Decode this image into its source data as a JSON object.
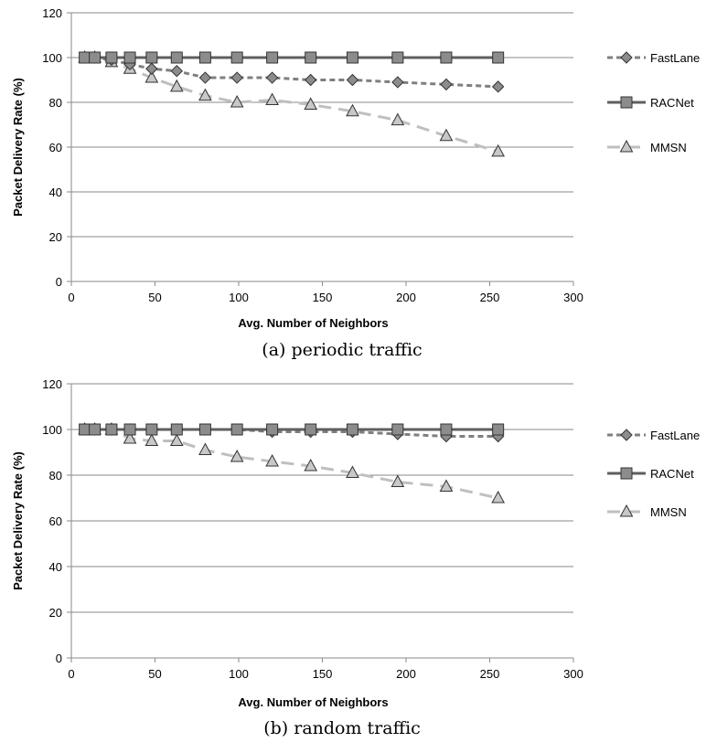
{
  "chart_data": [
    {
      "type": "line",
      "caption": "(a) periodic traffic",
      "xlabel": "Avg. Number of Neighbors",
      "ylabel": "Packet Delivery Rate (%)",
      "xlim": [
        0,
        300
      ],
      "ylim": [
        0,
        120
      ],
      "xticks": [
        0,
        50,
        100,
        150,
        200,
        250,
        300
      ],
      "yticks": [
        0,
        20,
        40,
        60,
        80,
        100,
        120
      ],
      "grid": "horizontal",
      "legend_position": "right",
      "series": [
        {
          "name": "FastLane",
          "marker": "diamond",
          "dash": "dashed",
          "color": "#7f7f7f",
          "x": [
            8,
            14,
            24,
            35,
            48,
            63,
            80,
            99,
            120,
            143,
            168,
            195,
            224,
            255
          ],
          "y": [
            100,
            100,
            99,
            97,
            95,
            94,
            91,
            91,
            91,
            90,
            90,
            89,
            88,
            87
          ]
        },
        {
          "name": "RACNet",
          "marker": "square",
          "dash": "solid",
          "color": "#5f5f5f",
          "x": [
            8,
            14,
            24,
            35,
            48,
            63,
            80,
            99,
            120,
            143,
            168,
            195,
            224,
            255
          ],
          "y": [
            100,
            100,
            100,
            100,
            100,
            100,
            100,
            100,
            100,
            100,
            100,
            100,
            100,
            100
          ]
        },
        {
          "name": "MMSN",
          "marker": "triangle",
          "dash": "longdash",
          "color": "#bfbfbf",
          "x": [
            8,
            14,
            24,
            35,
            48,
            63,
            80,
            99,
            120,
            143,
            168,
            195,
            224,
            255
          ],
          "y": [
            100,
            100,
            98,
            95,
            91,
            87,
            83,
            80,
            81,
            79,
            76,
            72,
            65,
            58
          ]
        }
      ]
    },
    {
      "type": "line",
      "caption": "(b) random traffic",
      "xlabel": "Avg. Number of Neighbors",
      "ylabel": "Packet Delivery Rate (%)",
      "xlim": [
        0,
        300
      ],
      "ylim": [
        0,
        120
      ],
      "xticks": [
        0,
        50,
        100,
        150,
        200,
        250,
        300
      ],
      "yticks": [
        0,
        20,
        40,
        60,
        80,
        100,
        120
      ],
      "grid": "horizontal",
      "legend_position": "right",
      "series": [
        {
          "name": "FastLane",
          "marker": "diamond",
          "dash": "dashed",
          "color": "#7f7f7f",
          "x": [
            8,
            14,
            24,
            35,
            48,
            63,
            80,
            99,
            120,
            143,
            168,
            195,
            224,
            255
          ],
          "y": [
            100,
            100,
            100,
            100,
            100,
            100,
            100,
            100,
            99,
            99,
            99,
            98,
            97,
            97
          ]
        },
        {
          "name": "RACNet",
          "marker": "square",
          "dash": "solid",
          "color": "#5f5f5f",
          "x": [
            8,
            14,
            24,
            35,
            48,
            63,
            80,
            99,
            120,
            143,
            168,
            195,
            224,
            255
          ],
          "y": [
            100,
            100,
            100,
            100,
            100,
            100,
            100,
            100,
            100,
            100,
            100,
            100,
            100,
            100
          ]
        },
        {
          "name": "MMSN",
          "marker": "triangle",
          "dash": "longdash",
          "color": "#bfbfbf",
          "x": [
            8,
            14,
            24,
            35,
            48,
            63,
            80,
            99,
            120,
            143,
            168,
            195,
            224,
            255
          ],
          "y": [
            100,
            100,
            100,
            96,
            95,
            95,
            91,
            88,
            86,
            84,
            81,
            77,
            75,
            70
          ]
        }
      ]
    }
  ]
}
